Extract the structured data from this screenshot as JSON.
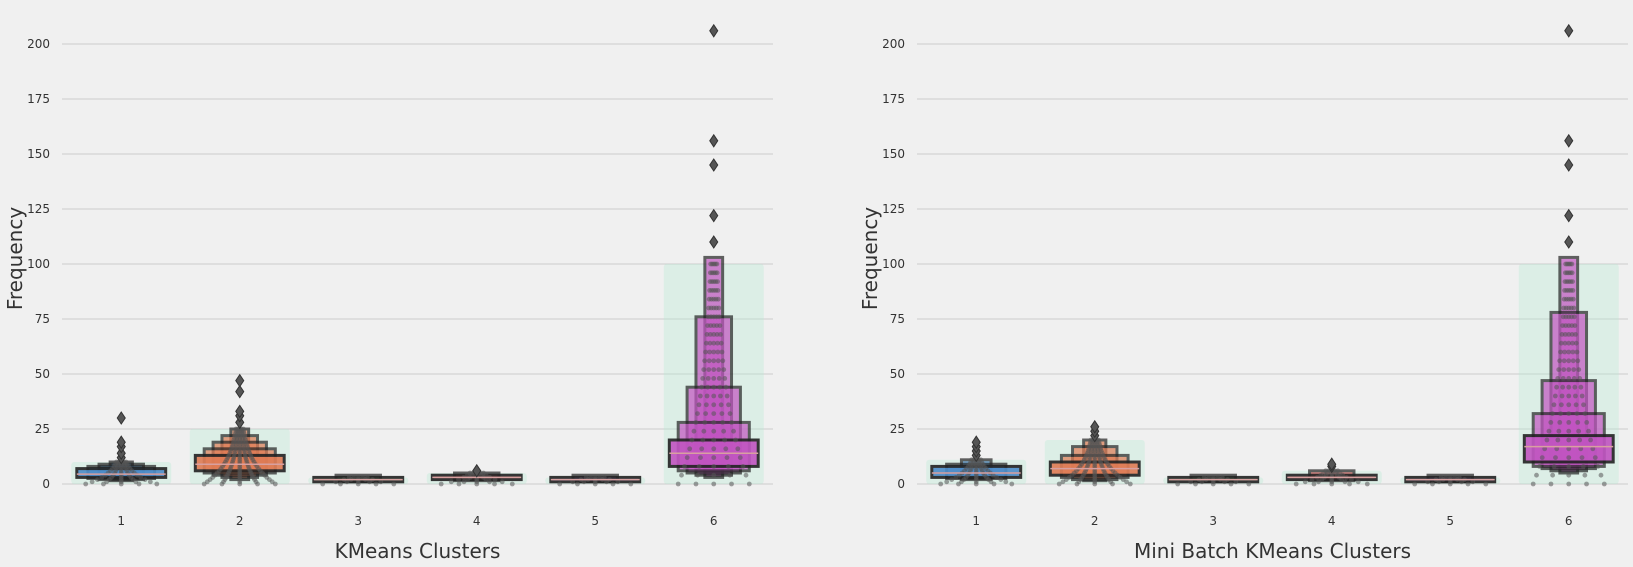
{
  "chart_data": [
    {
      "type": "boxen",
      "xlabel": "KMeans Clusters",
      "ylabel": "Frequency",
      "ylim": [
        -5,
        210
      ],
      "yticks": [
        0,
        25,
        50,
        75,
        100,
        125,
        150,
        175,
        200
      ],
      "grid": true,
      "categories": [
        "1",
        "2",
        "3",
        "4",
        "5",
        "6"
      ],
      "series": [
        {
          "colors": {
            "boxen": "#5b9bd5",
            "swarm": "#b8ead5",
            "points": "#555555"
          },
          "boxes": [
            {
              "category": "1",
              "color": "#4c8cc9",
              "levels": [
                [
                  3,
                  7
                ],
                [
                  2.5,
                  8
                ],
                [
                  2,
                  9
                ],
                [
                  1.5,
                  10
                ]
              ],
              "median": 4.5,
              "outliers": [
                12,
                14,
                17,
                19,
                30
              ],
              "max_strip": 10
            },
            {
              "category": "2",
              "color": "#e07b54",
              "levels": [
                [
                  6,
                  13
                ],
                [
                  5,
                  16
                ],
                [
                  4,
                  19
                ],
                [
                  3,
                  22
                ],
                [
                  2,
                  25
                ]
              ],
              "median": 9,
              "outliers": [
                28,
                31,
                33,
                42,
                47
              ],
              "max_strip": 25
            },
            {
              "category": "3",
              "color": "#5aa469",
              "levels": [
                [
                  1,
                  3
                ],
                [
                  1,
                  4
                ]
              ],
              "median": 2,
              "outliers": [],
              "max_strip": 3
            },
            {
              "category": "4",
              "color": "#d25a5a",
              "levels": [
                [
                  2,
                  4
                ],
                [
                  1.5,
                  5
                ]
              ],
              "median": 3,
              "outliers": [
                6
              ],
              "max_strip": 5
            },
            {
              "category": "5",
              "color": "#8a6bbd",
              "levels": [
                [
                  1,
                  3
                ],
                [
                  1,
                  4
                ]
              ],
              "median": 2,
              "outliers": [],
              "max_strip": 3
            },
            {
              "category": "6",
              "color": "#c154c1",
              "levels": [
                [
                  8,
                  20
                ],
                [
                  6,
                  28
                ],
                [
                  5,
                  44
                ],
                [
                  4,
                  76
                ],
                [
                  3,
                  103
                ]
              ],
              "median": 14,
              "outliers": [
                110,
                122,
                145,
                156,
                206
              ],
              "max_strip": 100
            }
          ]
        }
      ]
    },
    {
      "type": "boxen",
      "xlabel": "Mini Batch KMeans Clusters",
      "ylabel": "Frequency",
      "ylim": [
        -5,
        210
      ],
      "yticks": [
        0,
        25,
        50,
        75,
        100,
        125,
        150,
        175,
        200
      ],
      "grid": true,
      "categories": [
        "1",
        "2",
        "3",
        "4",
        "5",
        "6"
      ],
      "series": [
        {
          "colors": {
            "boxen": "#5b9bd5",
            "swarm": "#b8ead5",
            "points": "#555555"
          },
          "boxes": [
            {
              "category": "1",
              "color": "#4c8cc9",
              "levels": [
                [
                  3,
                  8
                ],
                [
                  2.5,
                  9
                ],
                [
                  2,
                  11
                ]
              ],
              "median": 5,
              "outliers": [
                13,
                15,
                17,
                19
              ],
              "max_strip": 11
            },
            {
              "category": "2",
              "color": "#e07b54",
              "levels": [
                [
                  4,
                  10
                ],
                [
                  3,
                  13
                ],
                [
                  2,
                  17
                ],
                [
                  1.5,
                  20
                ]
              ],
              "median": 7,
              "outliers": [
                22,
                24,
                26
              ],
              "max_strip": 20
            },
            {
              "category": "3",
              "color": "#5aa469",
              "levels": [
                [
                  1,
                  3
                ],
                [
                  1,
                  4
                ]
              ],
              "median": 2,
              "outliers": [],
              "max_strip": 3
            },
            {
              "category": "4",
              "color": "#d25a5a",
              "levels": [
                [
                  2,
                  4
                ],
                [
                  1.5,
                  6
                ]
              ],
              "median": 3,
              "outliers": [
                8,
                9
              ],
              "max_strip": 6
            },
            {
              "category": "5",
              "color": "#8a6bbd",
              "levels": [
                [
                  1,
                  3
                ],
                [
                  1,
                  4
                ]
              ],
              "median": 2,
              "outliers": [],
              "max_strip": 3
            },
            {
              "category": "6",
              "color": "#c154c1",
              "levels": [
                [
                  10,
                  22
                ],
                [
                  8,
                  32
                ],
                [
                  7,
                  47
                ],
                [
                  6,
                  78
                ],
                [
                  5,
                  103
                ]
              ],
              "median": 17,
              "outliers": [
                110,
                122,
                145,
                156,
                206
              ],
              "max_strip": 100
            }
          ]
        }
      ]
    }
  ]
}
